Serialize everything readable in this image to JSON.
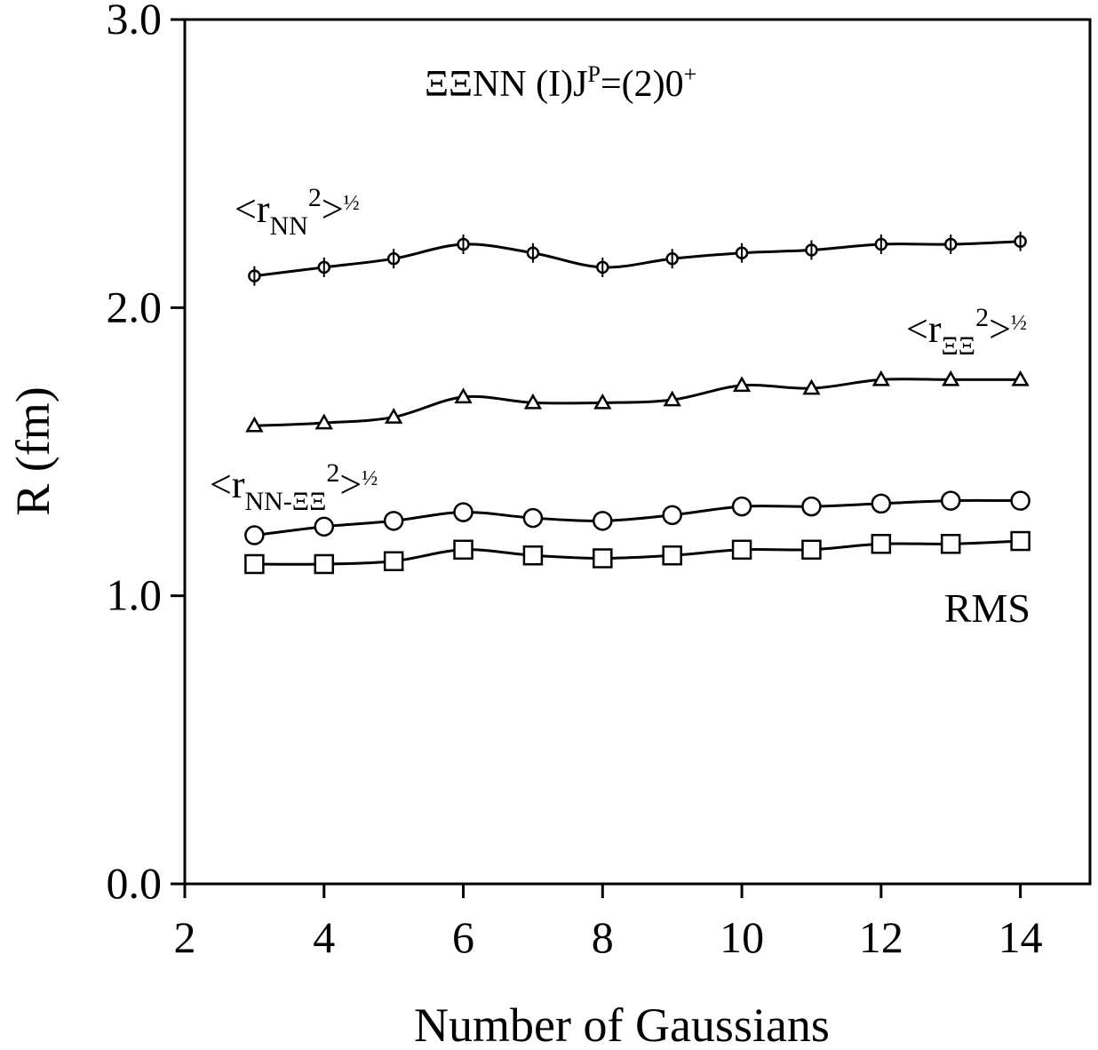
{
  "chart_data": {
    "type": "line",
    "title": "ΞΞNN  (I)J^P=(2)0^+",
    "title_parts": {
      "main": "ΞΞNN  (I)J",
      "sup_p": "P",
      "mid": "=(2)0",
      "sup_plus": "+"
    },
    "xlabel": "Number of Gaussians",
    "ylabel": "R (fm)",
    "xlim": [
      2,
      15
    ],
    "ylim": [
      0,
      3
    ],
    "xticks": [
      2,
      4,
      6,
      8,
      10,
      12,
      14
    ],
    "xtick_labels": [
      "2",
      "4",
      "6",
      "8",
      "10",
      "12",
      "14"
    ],
    "yticks": [
      0,
      1,
      2,
      3
    ],
    "ytick_labels": [
      "0.0",
      "1.0",
      "2.0",
      "3.0"
    ],
    "grid": false,
    "x": [
      3,
      4,
      5,
      6,
      7,
      8,
      9,
      10,
      11,
      12,
      13,
      14
    ],
    "series": [
      {
        "name": "<r_NN^2>^1/2",
        "marker": "circle-plus",
        "values": [
          2.11,
          2.14,
          2.17,
          2.22,
          2.19,
          2.14,
          2.17,
          2.19,
          2.2,
          2.22,
          2.22,
          2.23
        ]
      },
      {
        "name": "<r_ΞΞ^2>^1/2",
        "marker": "triangle",
        "values": [
          1.59,
          1.6,
          1.62,
          1.69,
          1.67,
          1.67,
          1.68,
          1.73,
          1.72,
          1.75,
          1.75,
          1.75
        ]
      },
      {
        "name": "<r_NN-ΞΞ^2>^1/2",
        "marker": "circle",
        "values": [
          1.21,
          1.24,
          1.26,
          1.29,
          1.27,
          1.26,
          1.28,
          1.31,
          1.31,
          1.32,
          1.33,
          1.33
        ]
      },
      {
        "name": "RMS",
        "marker": "square",
        "values": [
          1.11,
          1.11,
          1.12,
          1.16,
          1.14,
          1.13,
          1.14,
          1.16,
          1.16,
          1.18,
          1.18,
          1.19
        ]
      }
    ],
    "annotations": {
      "nn": {
        "open": "<r",
        "sub": "NN",
        "sup": "2",
        "close": ">",
        "half": "½"
      },
      "xx": {
        "open": "<r",
        "sub": "ΞΞ",
        "sup": "2",
        "close": ">",
        "half": "½"
      },
      "nnxx": {
        "open": "<r",
        "sub": "NN-ΞΞ",
        "sup": "2",
        "close": ">",
        "half": "½"
      },
      "rms": "RMS"
    }
  }
}
